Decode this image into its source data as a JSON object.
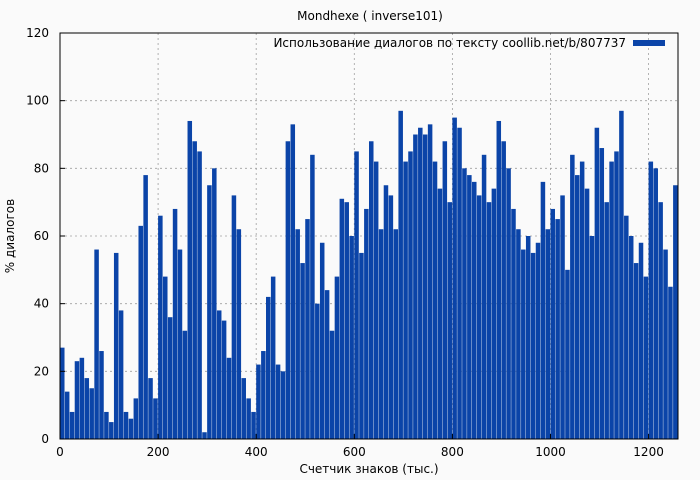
{
  "chart_data": {
    "type": "bar",
    "title": "Mondhexe ( inverse101)",
    "xlabel": "Счетчик знаков (тыс.)",
    "ylabel": "% диалогов",
    "xlim": [
      0,
      1260
    ],
    "ylim": [
      0,
      120
    ],
    "xticks": [
      0,
      200,
      400,
      600,
      800,
      1000,
      1200
    ],
    "yticks": [
      0,
      20,
      40,
      60,
      80,
      100,
      120
    ],
    "grid": true,
    "legend_position": "top-right",
    "series": [
      {
        "name": "Использование диалогов по тексту coollib.net/b/807737",
        "color": "#0b44a8",
        "x": [
          0,
          10,
          20,
          30,
          40,
          50,
          60,
          70,
          80,
          90,
          100,
          110,
          120,
          130,
          140,
          150,
          160,
          170,
          180,
          190,
          200,
          210,
          220,
          230,
          240,
          250,
          260,
          270,
          280,
          290,
          300,
          310,
          320,
          330,
          340,
          350,
          360,
          370,
          380,
          390,
          400,
          410,
          420,
          430,
          440,
          450,
          460,
          470,
          480,
          490,
          500,
          510,
          520,
          530,
          540,
          550,
          560,
          570,
          580,
          590,
          600,
          610,
          620,
          630,
          640,
          650,
          660,
          670,
          680,
          690,
          700,
          710,
          720,
          730,
          740,
          750,
          760,
          770,
          780,
          790,
          800,
          810,
          820,
          830,
          840,
          850,
          860,
          870,
          880,
          890,
          900,
          910,
          920,
          930,
          940,
          950,
          960,
          970,
          980,
          990,
          1000,
          1010,
          1020,
          1030,
          1040,
          1050,
          1060,
          1070,
          1080,
          1090,
          1100,
          1110,
          1120,
          1130,
          1140,
          1150,
          1160,
          1170,
          1180,
          1190,
          1200,
          1210,
          1220,
          1230,
          1240,
          1250
        ],
        "values": [
          27,
          14,
          8,
          23,
          24,
          18,
          15,
          56,
          26,
          8,
          5,
          55,
          38,
          8,
          6,
          12,
          63,
          78,
          18,
          12,
          66,
          48,
          36,
          68,
          56,
          32,
          94,
          88,
          85,
          2,
          75,
          80,
          38,
          35,
          24,
          72,
          62,
          18,
          12,
          8,
          22,
          26,
          42,
          48,
          22,
          20,
          88,
          93,
          62,
          52,
          65,
          84,
          40,
          58,
          44,
          32,
          48,
          71,
          70,
          60,
          85,
          55,
          68,
          88,
          82,
          62,
          75,
          72,
          62,
          97,
          82,
          85,
          90,
          92,
          90,
          93,
          82,
          74,
          88,
          70,
          95,
          92,
          80,
          78,
          76,
          72,
          84,
          70,
          74,
          94,
          88,
          80,
          68,
          62,
          56,
          60,
          55,
          58,
          76,
          62,
          68,
          65,
          72,
          50,
          84,
          78,
          82,
          74,
          60,
          92,
          86,
          70,
          82,
          85,
          97,
          66,
          60,
          52,
          58,
          48,
          82,
          80,
          70,
          56,
          45,
          75
        ]
      }
    ]
  }
}
